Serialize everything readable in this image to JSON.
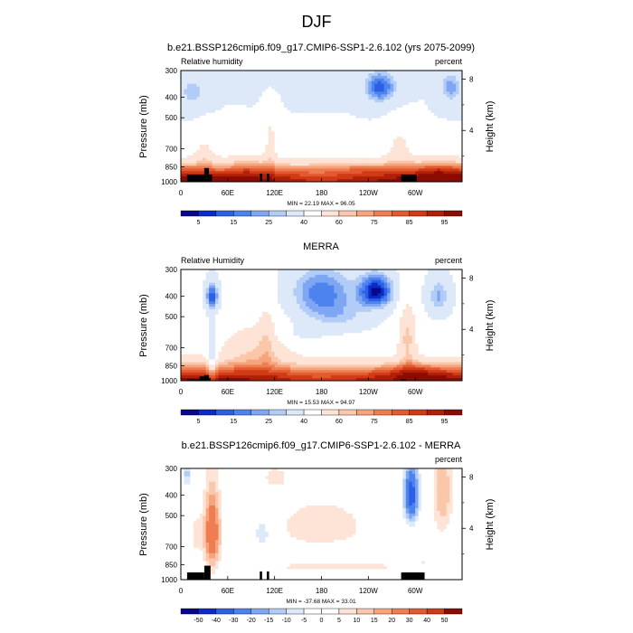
{
  "figure_title": "DJF",
  "colors": {
    "positive_scale": [
      "#08088c",
      "#0b2cc6",
      "#2c5fe3",
      "#4d83ee",
      "#7ea6f3",
      "#b1cdf7",
      "#dde8f8",
      "#ffffff",
      "#fde4d6",
      "#fbc7aa",
      "#f7a47c",
      "#ef7d52",
      "#e35a30",
      "#d03b16",
      "#b02008",
      "#8c0b03"
    ],
    "diff_scale": [
      "#08088c",
      "#0b2cc6",
      "#2c5fe3",
      "#4d83ee",
      "#7ea6f3",
      "#b1cdf7",
      "#dde8f8",
      "#ffffff",
      "#ffffff",
      "#fde4d6",
      "#fbc7aa",
      "#f7a47c",
      "#ef7d52",
      "#e35a30",
      "#d03b16",
      "#8c0b03"
    ],
    "topography": "#000000"
  },
  "chart_data": [
    {
      "type": "heatmap",
      "id": "model",
      "title": "b.e21.BSSP126cmip6.f09_g17.CMIP6-SSP1-2.6.102 (yrs 2075-2099)",
      "left_label": "Relative humidity",
      "right_label": "percent",
      "ylabel": "Pressure (mb)",
      "ylabel_right": "Height (km)",
      "yticks": [
        300,
        400,
        500,
        700,
        850,
        1000
      ],
      "ylim": [
        300,
        1000
      ],
      "yticks_right": [
        8,
        4
      ],
      "xticks": [
        "0",
        "60E",
        "120E",
        "180",
        "120W",
        "60W"
      ],
      "xtick_values": [
        0,
        60,
        120,
        180,
        240,
        300
      ],
      "xlim": [
        0,
        360
      ],
      "minmax_text": "MIN = 22.19  MAX = 96.05",
      "levels": [
        5,
        10,
        15,
        20,
        25,
        30,
        40,
        50,
        60,
        65,
        70,
        75,
        80,
        85,
        90,
        95
      ],
      "colorbar_labels": [
        "5",
        "15",
        "25",
        "40",
        "60",
        "75",
        "85",
        "95"
      ],
      "colorbar_label_index": [
        0,
        2,
        4,
        6,
        8,
        10,
        12,
        14
      ],
      "features": [
        {
          "lon": 0,
          "p": 1000,
          "slon": 360,
          "sp": 180,
          "amp": 55
        },
        {
          "lon": 30,
          "p": 720,
          "slon": 12,
          "sp": 120,
          "amp": 10
        },
        {
          "lon": 85,
          "p": 850,
          "slon": 20,
          "sp": 100,
          "amp": 8
        },
        {
          "lon": 115,
          "p": 650,
          "slon": 8,
          "sp": 250,
          "amp": 12
        },
        {
          "lon": 280,
          "p": 680,
          "slon": 15,
          "sp": 140,
          "amp": 12
        },
        {
          "lon": 330,
          "p": 880,
          "slon": 30,
          "sp": 80,
          "amp": 10
        },
        {
          "lon": 225,
          "p": 860,
          "slon": 60,
          "sp": 60,
          "amp": 6
        },
        {
          "lon": 15,
          "p": 380,
          "slon": 15,
          "sp": 60,
          "amp": -14
        },
        {
          "lon": 175,
          "p": 330,
          "slon": 30,
          "sp": 60,
          "amp": -6
        },
        {
          "lon": 255,
          "p": 360,
          "slon": 20,
          "sp": 60,
          "amp": -28
        },
        {
          "lon": 345,
          "p": 360,
          "slon": 12,
          "sp": 60,
          "amp": -18
        },
        {
          "lon": 120,
          "p": 310,
          "slon": 40,
          "sp": 50,
          "amp": -8
        }
      ],
      "base": 40,
      "topography": [
        [
          8,
          30,
          925
        ],
        [
          30,
          36,
          862
        ],
        [
          36,
          40,
          925
        ],
        [
          101,
          104,
          915
        ],
        [
          110,
          113,
          915
        ],
        [
          282,
          302,
          925
        ]
      ]
    },
    {
      "type": "heatmap",
      "id": "obs",
      "title": "MERRA",
      "left_label": "Relative Humidity",
      "right_label": "percent",
      "ylabel": "Pressure (mb)",
      "ylabel_right": "Height (km)",
      "yticks": [
        300,
        400,
        500,
        700,
        850,
        1000
      ],
      "ylim": [
        300,
        1000
      ],
      "yticks_right": [
        8,
        4
      ],
      "xticks": [
        "0",
        "60E",
        "120E",
        "180",
        "120W",
        "60W"
      ],
      "xtick_values": [
        0,
        60,
        120,
        180,
        240,
        300
      ],
      "xlim": [
        0,
        360
      ],
      "minmax_text": "MIN = 15.53  MAX = 94.97",
      "levels": [
        5,
        10,
        15,
        20,
        25,
        30,
        40,
        50,
        60,
        65,
        70,
        75,
        80,
        85,
        90,
        95
      ],
      "colorbar_labels": [
        "5",
        "15",
        "25",
        "40",
        "60",
        "75",
        "85",
        "95"
      ],
      "colorbar_label_index": [
        0,
        2,
        4,
        6,
        8,
        10,
        12,
        14
      ],
      "features": [
        {
          "lon": 0,
          "p": 1000,
          "slon": 360,
          "sp": 170,
          "amp": 50
        },
        {
          "lon": 95,
          "p": 700,
          "slon": 45,
          "sp": 180,
          "amp": 15
        },
        {
          "lon": 110,
          "p": 600,
          "slon": 10,
          "sp": 250,
          "amp": 8
        },
        {
          "lon": 290,
          "p": 620,
          "slon": 12,
          "sp": 200,
          "amp": 20
        },
        {
          "lon": 300,
          "p": 900,
          "slon": 30,
          "sp": 80,
          "amp": 10
        },
        {
          "lon": 10,
          "p": 650,
          "slon": 12,
          "sp": 100,
          "amp": 6
        },
        {
          "lon": 40,
          "p": 400,
          "slon": 8,
          "sp": 60,
          "amp": -30
        },
        {
          "lon": 40,
          "p": 800,
          "slon": 6,
          "sp": 250,
          "amp": -18
        },
        {
          "lon": 180,
          "p": 380,
          "slon": 40,
          "sp": 100,
          "amp": -25
        },
        {
          "lon": 250,
          "p": 380,
          "slon": 22,
          "sp": 70,
          "amp": -38
        },
        {
          "lon": 200,
          "p": 500,
          "slon": 45,
          "sp": 80,
          "amp": -12
        },
        {
          "lon": 330,
          "p": 400,
          "slon": 15,
          "sp": 80,
          "amp": -18
        },
        {
          "lon": 150,
          "p": 600,
          "slon": 30,
          "sp": 60,
          "amp": -5
        }
      ],
      "base": 42,
      "topography": [
        [
          8,
          24,
          985
        ],
        [
          24,
          30,
          955
        ],
        [
          30,
          36,
          940
        ],
        [
          36,
          38,
          970
        ],
        [
          282,
          288,
          985
        ]
      ]
    },
    {
      "type": "heatmap",
      "id": "diff",
      "title": "b.e21.BSSP126cmip6.f09_g17.CMIP6-SSP1-2.6.102 - MERRA",
      "left_label": "",
      "right_label": "percent",
      "ylabel": "Pressure (mb)",
      "ylabel_right": "Height (km)",
      "yticks": [
        300,
        400,
        500,
        700,
        850,
        1000
      ],
      "ylim": [
        300,
        1000
      ],
      "yticks_right": [
        8,
        4
      ],
      "xticks": [
        "0",
        "60E",
        "120E",
        "180",
        "120W",
        "60W"
      ],
      "xtick_values": [
        0,
        60,
        120,
        180,
        240,
        300
      ],
      "xlim": [
        0,
        360
      ],
      "minmax_text": "MIN = -37.68  MAX = 33.01",
      "levels": [
        -50,
        -40,
        -30,
        -20,
        -15,
        -10,
        -5,
        0,
        5,
        10,
        15,
        20,
        30,
        40,
        50
      ],
      "colorbar_labels": [
        "-50",
        "-40",
        "-30",
        "-20",
        "-15",
        "-10",
        "-5",
        "0",
        "5",
        "10",
        "15",
        "20",
        "30",
        "40",
        "50"
      ],
      "colorbar_label_index": [
        0,
        1,
        2,
        3,
        4,
        5,
        6,
        7,
        8,
        9,
        10,
        11,
        12,
        13,
        14
      ],
      "features": [
        {
          "lon": 40,
          "p": 600,
          "slon": 10,
          "sp": 250,
          "amp": 30
        },
        {
          "lon": 20,
          "p": 620,
          "slon": 8,
          "sp": 120,
          "amp": 8
        },
        {
          "lon": 180,
          "p": 560,
          "slon": 60,
          "sp": 150,
          "amp": 9
        },
        {
          "lon": 200,
          "p": 870,
          "slon": 80,
          "sp": 40,
          "amp": 10
        },
        {
          "lon": 335,
          "p": 380,
          "slon": 12,
          "sp": 200,
          "amp": 15
        },
        {
          "lon": 120,
          "p": 330,
          "slon": 25,
          "sp": 60,
          "amp": 6
        },
        {
          "lon": 295,
          "p": 400,
          "slon": 9,
          "sp": 120,
          "amp": -36
        },
        {
          "lon": 105,
          "p": 600,
          "slon": 15,
          "sp": 150,
          "amp": -8
        },
        {
          "lon": 8,
          "p": 320,
          "slon": 6,
          "sp": 40,
          "amp": -12
        },
        {
          "lon": 215,
          "p": 720,
          "slon": 40,
          "sp": 40,
          "amp": -4
        },
        {
          "lon": 310,
          "p": 850,
          "slon": 10,
          "sp": 80,
          "amp": -6
        }
      ],
      "base": 0,
      "topography": [
        [
          8,
          30,
          925
        ],
        [
          30,
          38,
          860
        ],
        [
          101,
          104,
          915
        ],
        [
          110,
          113,
          915
        ],
        [
          282,
          312,
          925
        ]
      ]
    }
  ]
}
